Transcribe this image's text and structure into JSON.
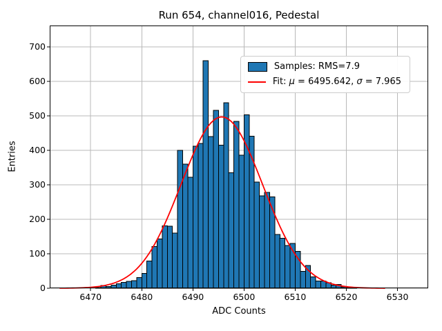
{
  "figure": {
    "title": "Run 654, channel016, Pedestal",
    "xlabel": "ADC Counts",
    "ylabel": "Entries"
  },
  "legend": {
    "samples_label": "Samples: RMS=7.9",
    "fit_prefix": "Fit: ",
    "fit_mu_symbol": "μ",
    "fit_mu_value": " = 6495.642, ",
    "fit_sigma_symbol": "σ",
    "fit_sigma_value": " = 7.965"
  },
  "chart_data": {
    "type": "bar",
    "subtype": "histogram_with_gaussian_fit",
    "title": "Run 654, channel016, Pedestal",
    "xlabel": "ADC Counts",
    "ylabel": "Entries",
    "xlim": [
      6462,
      6536
    ],
    "ylim": [
      0,
      762
    ],
    "xticks": [
      6470,
      6480,
      6490,
      6500,
      6510,
      6520,
      6530
    ],
    "yticks": [
      0,
      100,
      200,
      300,
      400,
      500,
      600,
      700
    ],
    "grid": true,
    "legend_position": "upper right",
    "bin_start": 6471,
    "bin_width": 1,
    "values": [
      2,
      8,
      5,
      9,
      13,
      17,
      20,
      22,
      31,
      43,
      79,
      121,
      143,
      181,
      180,
      160,
      400,
      360,
      322,
      412,
      420,
      660,
      440,
      516,
      415,
      538,
      335,
      484,
      386,
      503,
      441,
      308,
      268,
      278,
      265,
      156,
      145,
      124,
      130,
      107,
      49,
      66,
      33,
      21,
      21,
      16,
      9,
      11,
      4,
      2,
      2
    ],
    "series": [
      {
        "name": "Samples: RMS=7.9",
        "type": "histogram",
        "rms": 7.9
      },
      {
        "name": "Fit: μ = 6495.642, σ = 7.965",
        "type": "gaussian",
        "mu": 6495.642,
        "sigma": 7.965,
        "amplitude": 497,
        "x_range": [
          6464,
          6527.5
        ]
      }
    ],
    "colors": {
      "bar_fill": "#1f77b4",
      "bar_edge": "#000000",
      "fit_line": "#fe0000",
      "grid": "#b8b8b8",
      "spine": "#000000"
    }
  }
}
